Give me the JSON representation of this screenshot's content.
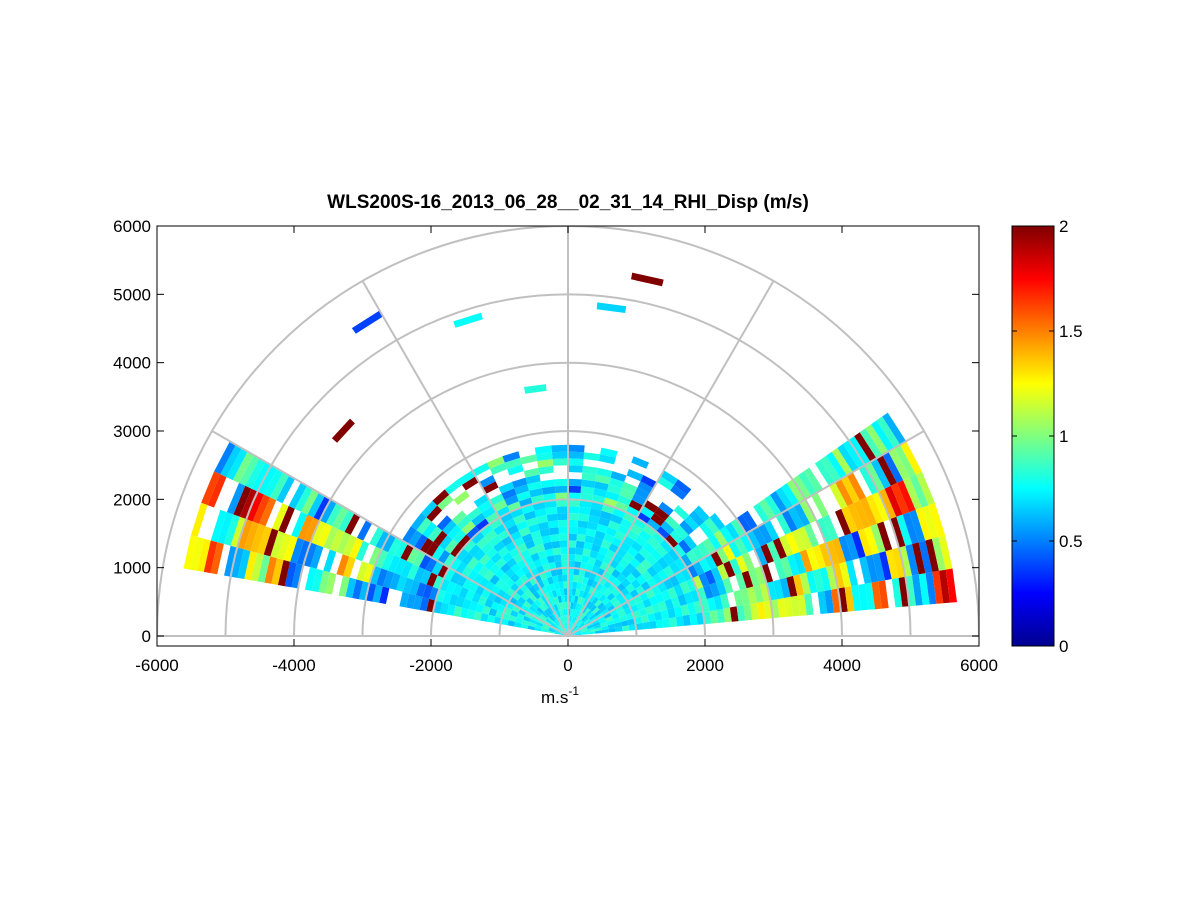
{
  "chart_data": {
    "type": "heatmap",
    "subtype": "polar-rhi-scan",
    "title": "WLS200S-16_2013_06_28__02_31_14_RHI_Disp (m/s)",
    "xlabel_main": "m.s",
    "xlabel_sup": "-1",
    "ylabel": "",
    "xlim": [
      -6000,
      6000
    ],
    "ylim": [
      0,
      6000
    ],
    "x_ticks": [
      -6000,
      -4000,
      -2000,
      0,
      2000,
      4000,
      6000
    ],
    "y_ticks": [
      0,
      1000,
      2000,
      3000,
      4000,
      5000,
      6000
    ],
    "range_rings": [
      1000,
      2000,
      3000,
      4000,
      5000,
      6000
    ],
    "spokes_deg": [
      30,
      60,
      90,
      120,
      150
    ],
    "scan": {
      "elevation_min_deg": 5,
      "elevation_max_deg": 170,
      "elevation_step_deg": 5,
      "range_gate_m": 100,
      "data_max_range_m": 5700,
      "value_unit": "m/s"
    },
    "colorbar": {
      "min": 0,
      "max": 2,
      "ticks": [
        0,
        0.5,
        1,
        1.5,
        2
      ],
      "tick_labels": [
        "0",
        "0.5",
        "1",
        "1.5",
        "2"
      ],
      "colormap": "jet"
    },
    "value_summary": {
      "near_range_typical": 0.75,
      "far_range_low_elevation_max": 2,
      "saturated_value": 2
    }
  }
}
